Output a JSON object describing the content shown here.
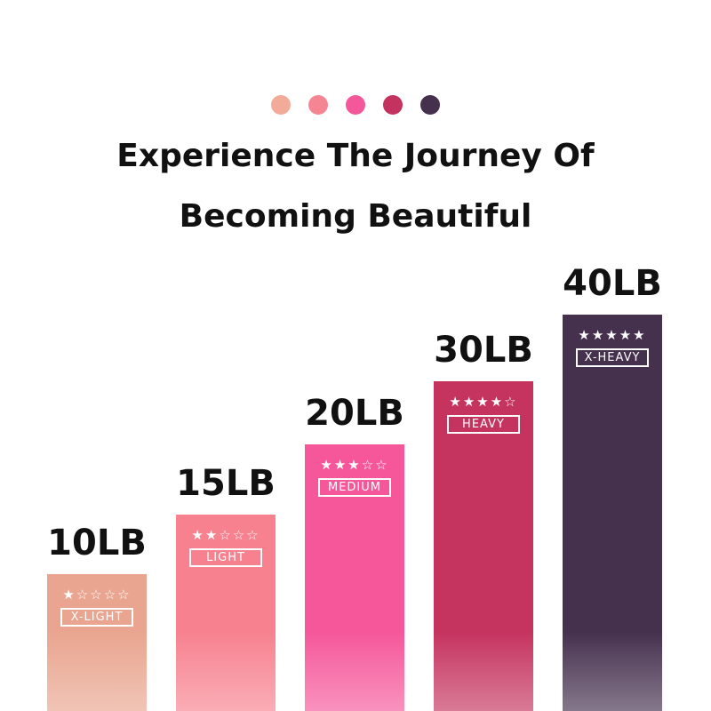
{
  "dot_colors": [
    "#f2ab98",
    "#f58593",
    "#f4579a",
    "#c4335f",
    "#45304e"
  ],
  "title_line1": "Experience The Journey Of",
  "title_line2": "Becoming Beautiful",
  "bands": [
    {
      "weight": "10LB",
      "stars": "★☆☆☆☆",
      "rating": 1,
      "level": "X-LIGHT",
      "color": "#e9a58f"
    },
    {
      "weight": "15LB",
      "stars": "★★☆☆☆",
      "rating": 2,
      "level": "LIGHT",
      "color": "#f7818f"
    },
    {
      "weight": "20LB",
      "stars": "★★★☆☆",
      "rating": 3,
      "level": "MEDIUM",
      "color": "#f5579a"
    },
    {
      "weight": "30LB",
      "stars": "★★★★☆",
      "rating": 4,
      "level": "HEAVY",
      "color": "#c5335f"
    },
    {
      "weight": "40LB",
      "stars": "★★★★★",
      "rating": 5,
      "level": "X-HEAVY",
      "color": "#45304e"
    }
  ]
}
